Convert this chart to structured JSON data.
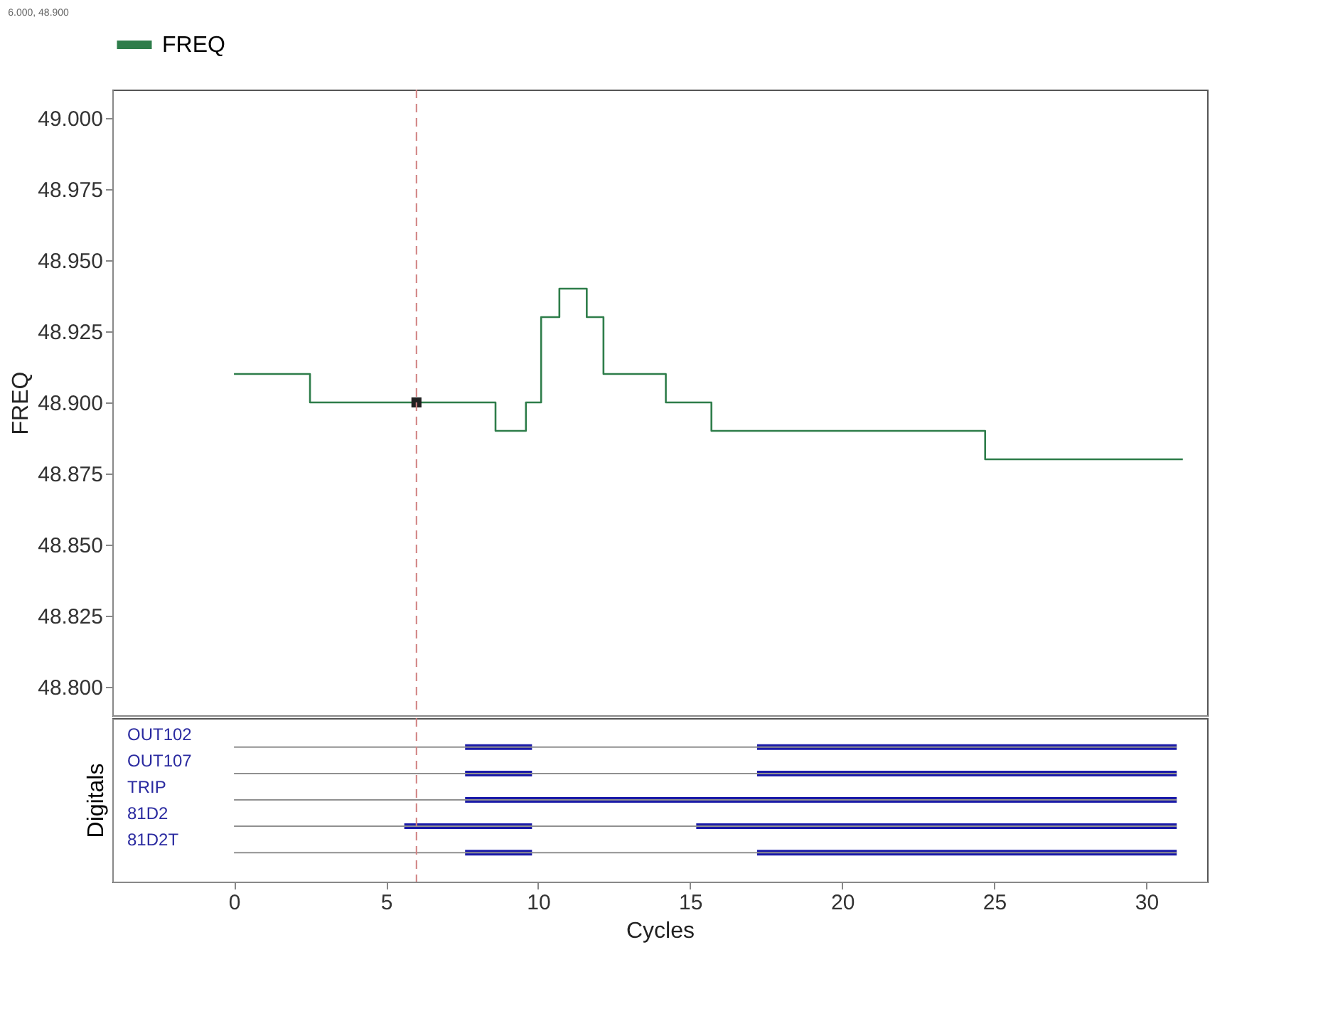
{
  "chart_data": [
    {
      "type": "step",
      "ylabel": "FREQ",
      "annotations": [
        "6.000, 48.900"
      ],
      "xlim": [
        -4,
        32
      ],
      "ylim": [
        48.79,
        49.01
      ],
      "yticks": [
        {
          "value": 48.8,
          "label": "48.800"
        },
        {
          "value": 48.825,
          "label": "48.825"
        },
        {
          "value": 48.85,
          "label": "48.850"
        },
        {
          "value": 48.875,
          "label": "48.875"
        },
        {
          "value": 48.9,
          "label": "48.900"
        },
        {
          "value": 48.925,
          "label": "48.925"
        },
        {
          "value": 48.95,
          "label": "48.950"
        },
        {
          "value": 48.975,
          "label": "48.975"
        },
        {
          "value": 49.0,
          "label": "49.000"
        }
      ],
      "tick_labels": "y",
      "grid": false,
      "legend": "top left",
      "ref_lines": [
        {
          "axis": "x",
          "value": 6,
          "color": "#d08080",
          "line_style": "dashed"
        }
      ],
      "series": [
        {
          "name": "FREQ",
          "type": "step",
          "color": "#2e7d4a",
          "marker": "none",
          "x": [
            0,
            2.5,
            8.6,
            9.6,
            10.1,
            10.7,
            11.6,
            12.15,
            14.2,
            15.7,
            24.7,
            31.2
          ],
          "values": [
            48.91,
            48.9,
            48.89,
            48.9,
            48.93,
            48.94,
            48.93,
            48.91,
            48.9,
            48.89,
            48.88,
            48.88
          ]
        },
        {
          "type": "scatter",
          "color": "#202020",
          "marker": "square",
          "x": [
            6
          ],
          "values": [
            48.9
          ]
        }
      ]
    },
    {
      "type": "bar",
      "orientation": "horizontal",
      "ylabel": "Digitals",
      "xlabel": "Cycles",
      "categories": [
        "OUT102",
        "OUT107",
        "TRIP",
        "81D2",
        "81D2T"
      ],
      "xlim": [
        -4,
        32
      ],
      "xticks": [
        0,
        5,
        10,
        15,
        20,
        25,
        30
      ],
      "grid": false,
      "legend": false,
      "ref_lines": [
        {
          "axis": "x",
          "value": 6,
          "color": "#d08080",
          "line_style": "dashed"
        }
      ],
      "series": [
        {
          "type": "bar",
          "color": "#1a1aa8",
          "base": [
            7.6,
            7.6,
            7.6,
            5.6,
            7.6
          ],
          "values": [
            2.2,
            2.2,
            23.4,
            4.2,
            2.2
          ]
        },
        {
          "type": "bar",
          "color": "#1a1aa8",
          "base": [
            17.2,
            17.2,
            null,
            15.2,
            17.2
          ],
          "values": [
            13.8,
            13.8,
            null,
            15.8,
            13.8
          ]
        }
      ]
    }
  ]
}
